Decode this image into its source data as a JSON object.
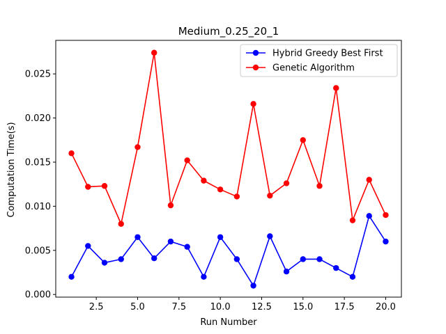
{
  "chart_data": {
    "type": "line",
    "title": "Medium_0.25_20_1",
    "xlabel": "Run Number",
    "ylabel": "Computation Time(s)",
    "xlim": [
      0.05,
      20.95
    ],
    "ylim": [
      -0.0003,
      0.0288
    ],
    "xticks": [
      2.5,
      5.0,
      7.5,
      10.0,
      12.5,
      15.0,
      17.5,
      20.0
    ],
    "xtick_labels": [
      "2.5",
      "5.0",
      "7.5",
      "10.0",
      "12.5",
      "15.0",
      "17.5",
      "20.0"
    ],
    "yticks": [
      0.0,
      0.005,
      0.01,
      0.015,
      0.02,
      0.025
    ],
    "ytick_labels": [
      "0.000",
      "0.005",
      "0.010",
      "0.015",
      "0.020",
      "0.025"
    ],
    "grid": false,
    "legend_position": "upper right",
    "x": [
      1,
      2,
      3,
      4,
      5,
      6,
      7,
      8,
      9,
      10,
      11,
      12,
      13,
      14,
      15,
      16,
      17,
      18,
      19,
      20
    ],
    "series": [
      {
        "name": "Hybrid Greedy Best First",
        "color": "#0000ff",
        "marker": "circle",
        "values": [
          0.002,
          0.0055,
          0.0036,
          0.004,
          0.0065,
          0.0041,
          0.006,
          0.0054,
          0.002,
          0.0065,
          0.004,
          0.001,
          0.0066,
          0.0026,
          0.004,
          0.004,
          0.003,
          0.002,
          0.0089,
          0.006
        ]
      },
      {
        "name": "Genetic Algorithm",
        "color": "#ff0000",
        "marker": "circle",
        "values": [
          0.016,
          0.0122,
          0.0123,
          0.008,
          0.0167,
          0.0274,
          0.0101,
          0.0152,
          0.0129,
          0.0119,
          0.0111,
          0.0216,
          0.0112,
          0.0126,
          0.0175,
          0.0123,
          0.0234,
          0.0084,
          0.013,
          0.009
        ]
      }
    ]
  }
}
